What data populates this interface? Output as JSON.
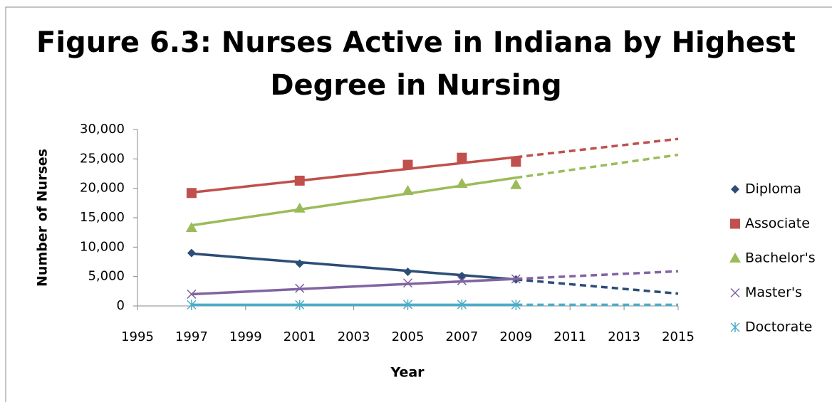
{
  "chart_data": {
    "type": "line",
    "title": [
      "Figure 6.3: Nurses Active in Indiana by Highest",
      "Degree in Nursing"
    ],
    "x_label": "Year",
    "y_label": "Number of Nurses",
    "x": [
      1997,
      2001,
      2005,
      2007,
      2009
    ],
    "trend_x": [
      1997,
      2009,
      2015
    ],
    "xlim": [
      1995,
      2015
    ],
    "xticks": [
      1995,
      1997,
      1999,
      2001,
      2003,
      2005,
      2007,
      2009,
      2011,
      2013,
      2015
    ],
    "ylim": [
      0,
      30000
    ],
    "yticks": [
      0,
      {
        "value": 5000,
        "label": "5,000"
      },
      {
        "value": 10000,
        "label": "10,000"
      },
      {
        "value": 15000,
        "label": "15,000"
      },
      {
        "value": 20000,
        "label": "20,000"
      },
      {
        "value": 25000,
        "label": "25,000"
      },
      {
        "value": 30000,
        "label": "30,000"
      }
    ],
    "grid": false,
    "legend": "right",
    "series": [
      {
        "name": "Diploma",
        "color": "#2c4d75",
        "marker": "diamond",
        "values": [
          9000,
          7200,
          5800,
          5100,
          4500
        ],
        "trend": [
          8900,
          4500,
          2100
        ]
      },
      {
        "name": "Associate",
        "color": "#c0504d",
        "marker": "square",
        "values": [
          19200,
          21300,
          24000,
          25200,
          24500
        ],
        "trend": [
          19300,
          25300,
          28400
        ]
      },
      {
        "name": "Bachelor's",
        "color": "#9bbb59",
        "marker": "triangle",
        "values": [
          13300,
          16600,
          19600,
          20800,
          20600
        ],
        "trend": [
          13700,
          21800,
          25700
        ]
      },
      {
        "name": "Master's",
        "color": "#8064a2",
        "marker": "x",
        "values": [
          2000,
          3000,
          3900,
          4300,
          4600
        ],
        "trend": [
          2000,
          4600,
          5900
        ]
      },
      {
        "name": "Doctorate",
        "color": "#4bacc6",
        "marker": "star",
        "values": [
          200,
          200,
          250,
          250,
          200
        ],
        "trend": [
          200,
          200,
          200
        ]
      }
    ]
  }
}
